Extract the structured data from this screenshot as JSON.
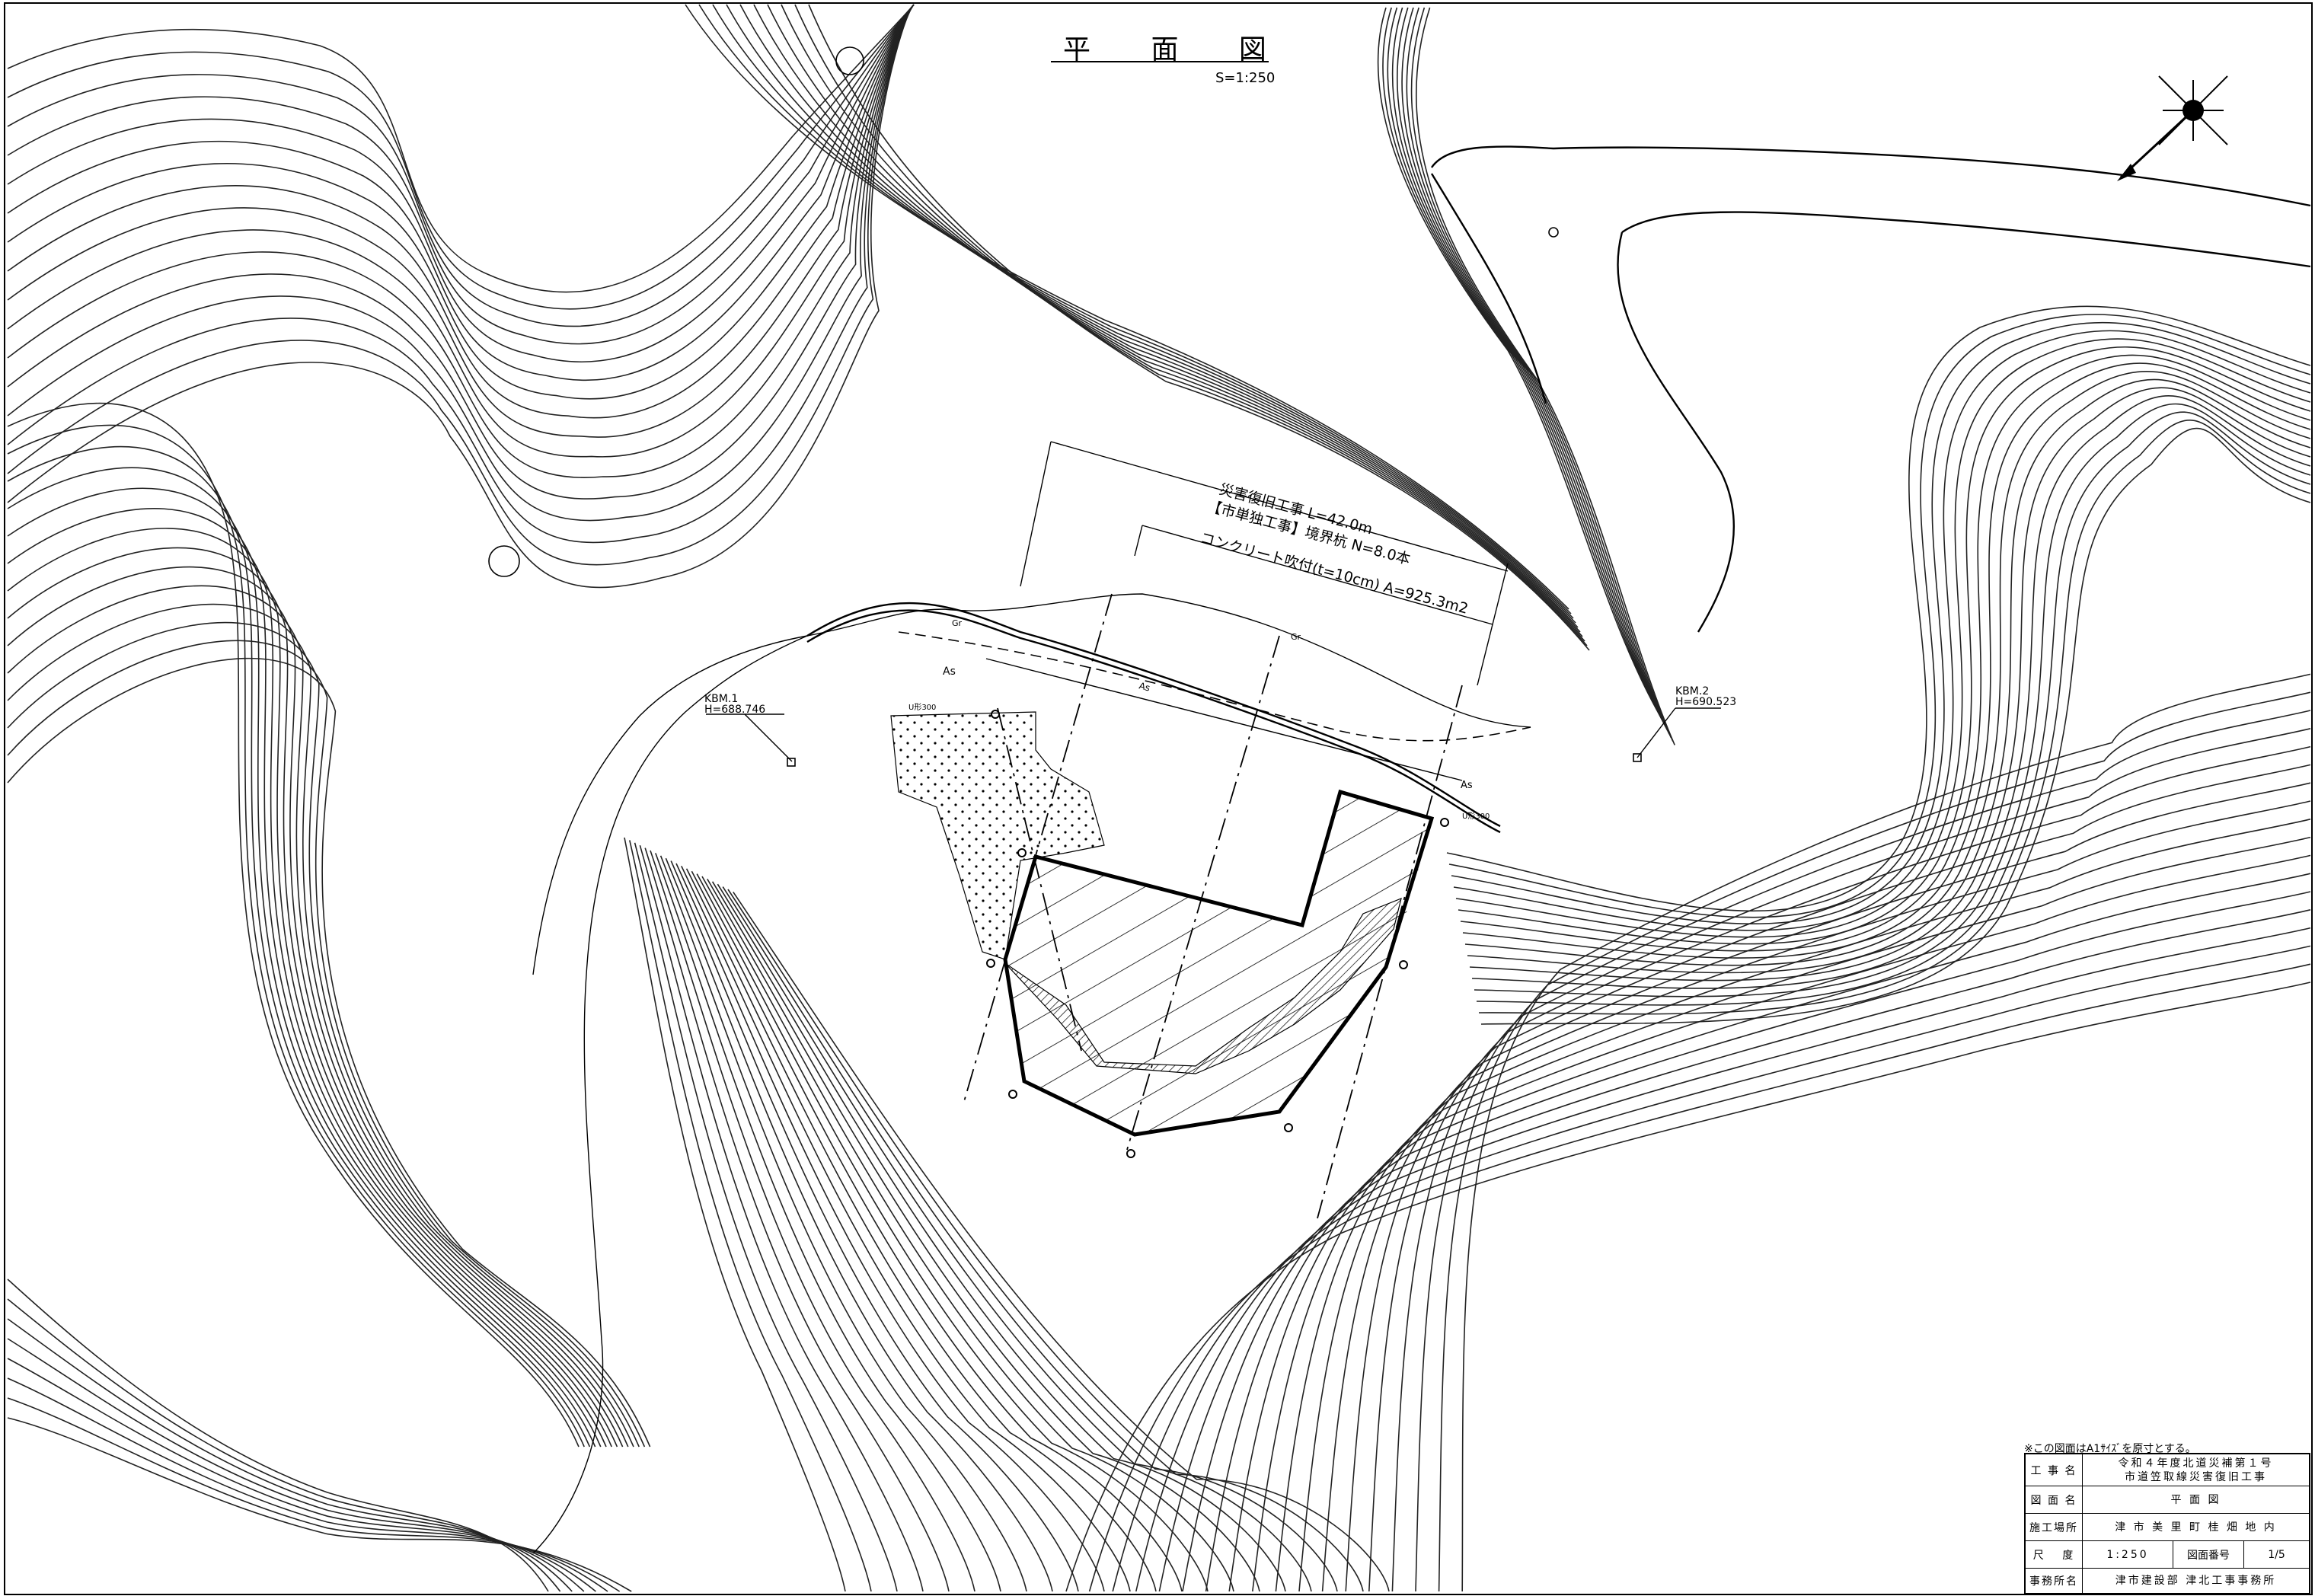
{
  "drawing": {
    "title": "平 面 図",
    "scale": "S=1:250",
    "annotations": {
      "work": "災害復旧工事 L=42.0m",
      "boundary": "【市単独工事】境界杭 N=8.0本",
      "concrete": "コンクリート吹付(t=10cm) A=925.3m2",
      "kbm1_name": "KBM.1",
      "kbm1_height": "H=688.746",
      "kbm2_name": "KBM.2",
      "kbm2_height": "H=690.523",
      "as1": "As",
      "as2": "As",
      "as3": "As",
      "gr1": "Gr",
      "gr2": "Gr",
      "u1": "U形300",
      "u2": "U形300"
    }
  },
  "title_block": {
    "note": "※この図面はA1ｻｲｽﾞを原寸とする。",
    "project_label": "工 事 名",
    "project_line1": "令和４年度北道災補第１号",
    "project_line2": "市道笠取線災害復旧工事",
    "drawing_label": "図 面 名",
    "drawing_value": "平 面 図",
    "site_label": "施工場所",
    "site_value": "津 市 美 里 町 桂 畑 地 内",
    "scale_label": "尺　 度",
    "scale_value": "1:250",
    "number_label": "図面番号",
    "number_value": "1/5",
    "office_label": "事務所名",
    "office_value": "津市建設部 津北工事事務所"
  }
}
